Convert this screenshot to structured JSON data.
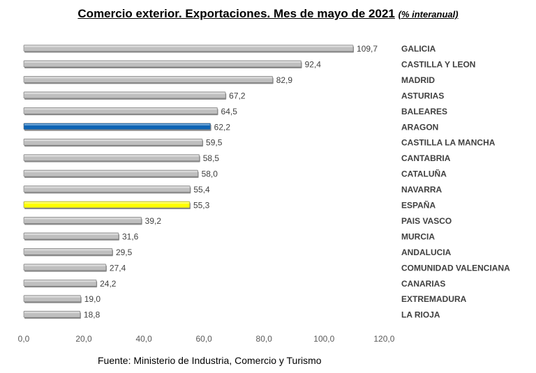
{
  "title": "Comercio exterior. Exportaciones. Mes de mayo de 2021",
  "subtitle": "(% interanual)",
  "source": "Fuente: Ministerio de Industria, Comercio y Turismo",
  "chart_data": {
    "type": "bar",
    "orientation": "horizontal",
    "title": "Comercio exterior. Exportaciones. Mes de mayo de 2021",
    "subtitle": "(% interanual)",
    "xlabel": "",
    "ylabel": "",
    "xlim": [
      0,
      120
    ],
    "x_ticks": [
      "0,0",
      "20,0",
      "40,0",
      "60,0",
      "80,0",
      "100,0",
      "120,0"
    ],
    "grid": false,
    "categories": [
      "GALICIA",
      "CASTILLA Y LEON",
      "MADRID",
      "ASTURIAS",
      "BALEARES",
      "ARAGON",
      "CASTILLA LA MANCHA",
      "CANTABRIA",
      "CATALUÑA",
      "NAVARRA",
      "ESPAÑA",
      "PAIS VASCO",
      "MURCIA",
      "ANDALUCIA",
      "COMUNIDAD VALENCIANA",
      "CANARIAS",
      "EXTREMADURA",
      "LA RIOJA"
    ],
    "values": [
      109.7,
      92.4,
      82.9,
      67.2,
      64.5,
      62.2,
      59.5,
      58.5,
      58.0,
      55.4,
      55.3,
      39.2,
      31.6,
      29.5,
      27.4,
      24.2,
      19.0,
      18.8
    ],
    "value_labels": [
      "109,7",
      "92,4",
      "82,9",
      "67,2",
      "64,5",
      "62,2",
      "59,5",
      "58,5",
      "58,0",
      "55,4",
      "55,3",
      "39,2",
      "31,6",
      "29,5",
      "27,4",
      "24,2",
      "19,0",
      "18,8"
    ],
    "colors": {
      "default": "#bfbfbf",
      "ARAGON": "#0e64b4",
      "ESPAÑA": "#ffff00"
    }
  }
}
